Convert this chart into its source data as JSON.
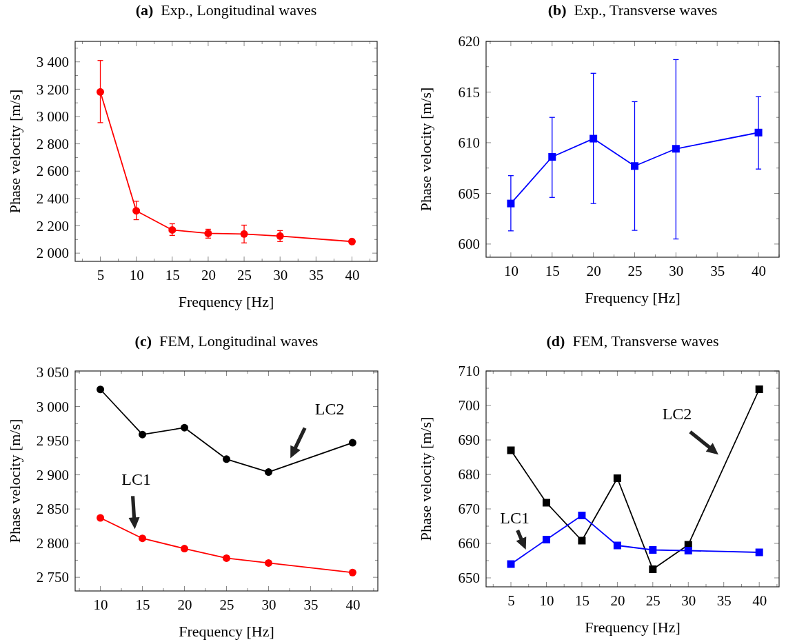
{
  "chart_data": [
    {
      "type": "line",
      "title": "(a) Exp., Longitudinal waves",
      "xlabel": "Frequency [Hz]",
      "ylabel": "Phase velocity [m/s]",
      "marker": "circle",
      "x": [
        5,
        10,
        15,
        20,
        25,
        30,
        40
      ],
      "xlim": [
        1.5,
        43.5
      ],
      "xticks": [
        {
          "value": 2.5,
          "label": null
        },
        5,
        {
          "value": 7.5,
          "label": null
        },
        10,
        {
          "value": 12.5,
          "label": null
        },
        15,
        {
          "value": 17.5,
          "label": null
        },
        20,
        {
          "value": 22.5,
          "label": null
        },
        25,
        {
          "value": 27.5,
          "label": null
        },
        30,
        {
          "value": 32.5,
          "label": null
        },
        35,
        {
          "value": 37.5,
          "label": null
        },
        40,
        {
          "value": 42.5,
          "label": null
        }
      ],
      "ylim": [
        1940,
        3550
      ],
      "yticks": [
        {
          "value": 2000,
          "label": "2 000"
        },
        {
          "value": 2100,
          "label": null
        },
        {
          "value": 2200,
          "label": "2 200"
        },
        {
          "value": 2300,
          "label": null
        },
        {
          "value": 2400,
          "label": "2 400"
        },
        {
          "value": 2500,
          "label": null
        },
        {
          "value": 2600,
          "label": "2 600"
        },
        {
          "value": 2700,
          "label": null
        },
        {
          "value": 2800,
          "label": "2 800"
        },
        {
          "value": 2900,
          "label": null
        },
        {
          "value": 3000,
          "label": "3 000"
        },
        {
          "value": 3100,
          "label": null
        },
        {
          "value": 3200,
          "label": "3 200"
        },
        {
          "value": 3300,
          "label": null
        },
        {
          "value": 3400,
          "label": "3 400"
        },
        {
          "value": 3500,
          "label": null
        }
      ],
      "series": [
        {
          "color": "#ff0000",
          "values": [
            3180,
            2310,
            2170,
            2145,
            2140,
            2125,
            2085
          ],
          "errors": [
            [
              2955,
              3410
            ],
            [
              2245,
              2380
            ],
            [
              2130,
              2215
            ],
            [
              2110,
              2175
            ],
            [
              2075,
              2205
            ],
            [
              2085,
              2165
            ],
            null
          ]
        }
      ]
    },
    {
      "type": "line",
      "title": "(b) Exp., Transverse waves",
      "xlabel": "Frequency [Hz]",
      "ylabel": "Phase velocity [m/s]",
      "marker": "square",
      "x": [
        10,
        15,
        20,
        25,
        30,
        40
      ],
      "xlim": [
        7,
        42.5
      ],
      "xticks": [
        {
          "value": 7.5,
          "label": null
        },
        10,
        {
          "value": 12.5,
          "label": null
        },
        15,
        {
          "value": 17.5,
          "label": null
        },
        20,
        {
          "value": 22.5,
          "label": null
        },
        25,
        {
          "value": 27.5,
          "label": null
        },
        30,
        {
          "value": 32.5,
          "label": null
        },
        35,
        {
          "value": 37.5,
          "label": null
        },
        40,
        {
          "value": 42.5,
          "label": null
        }
      ],
      "ylim": [
        598.7,
        620
      ],
      "yticks": [
        600,
        {
          "value": 602.5,
          "label": null
        },
        605,
        {
          "value": 607.5,
          "label": null
        },
        610,
        {
          "value": 612.5,
          "label": null
        },
        615,
        {
          "value": 617.5,
          "label": null
        },
        620
      ],
      "series": [
        {
          "color": "#0000ff",
          "values": [
            604.0,
            608.6,
            610.4,
            607.7,
            609.4,
            611.0
          ],
          "errors": [
            [
              601.3,
              606.75
            ],
            [
              604.6,
              612.5
            ],
            [
              604.0,
              616.85
            ],
            [
              601.35,
              614.05
            ],
            [
              600.5,
              618.2
            ],
            [
              607.4,
              614.55
            ]
          ]
        }
      ]
    },
    {
      "type": "line",
      "title": "(c) FEM, Longitudinal waves",
      "xlabel": "Frequency [Hz]",
      "ylabel": "Phase velocity [m/s]",
      "marker": "circle",
      "x": [
        10,
        15,
        20,
        25,
        30,
        40
      ],
      "xlim": [
        7,
        43
      ],
      "xticks": [
        {
          "value": 7.5,
          "label": null
        },
        10,
        {
          "value": 12.5,
          "label": null
        },
        15,
        {
          "value": 17.5,
          "label": null
        },
        20,
        {
          "value": 22.5,
          "label": null
        },
        25,
        {
          "value": 27.5,
          "label": null
        },
        30,
        {
          "value": 32.5,
          "label": null
        },
        35,
        {
          "value": 37.5,
          "label": null
        },
        40,
        {
          "value": 42.5,
          "label": null
        }
      ],
      "ylim": [
        2730,
        3052
      ],
      "yticks": [
        {
          "value": 2750,
          "label": "2 750"
        },
        {
          "value": 2775,
          "label": null
        },
        {
          "value": 2800,
          "label": "2 800"
        },
        {
          "value": 2825,
          "label": null
        },
        {
          "value": 2850,
          "label": "2 850"
        },
        {
          "value": 2875,
          "label": null
        },
        {
          "value": 2900,
          "label": "2 900"
        },
        {
          "value": 2925,
          "label": null
        },
        {
          "value": 2950,
          "label": "2 950"
        },
        {
          "value": 2975,
          "label": null
        },
        {
          "value": 3000,
          "label": "3 000"
        },
        {
          "value": 3025,
          "label": null
        },
        {
          "value": 3050,
          "label": "3 050"
        }
      ],
      "series": [
        {
          "name": "LC2",
          "color": "#000000",
          "values": [
            3025,
            2959,
            2969,
            2923,
            2904,
            2947
          ]
        },
        {
          "name": "LC1",
          "color": "#ff0000",
          "values": [
            2837,
            2807,
            2792,
            2778,
            2771,
            2757
          ]
        }
      ]
    },
    {
      "type": "line",
      "title": "(d) FEM, Transverse waves",
      "xlabel": "Frequency [Hz]",
      "ylabel": "Phase velocity [m/s]",
      "marker": "square",
      "x": [
        5,
        10,
        15,
        20,
        25,
        30,
        40
      ],
      "xlim": [
        1.5,
        42.8
      ],
      "xticks": [
        {
          "value": 2.5,
          "label": null
        },
        5,
        {
          "value": 7.5,
          "label": null
        },
        10,
        {
          "value": 12.5,
          "label": null
        },
        15,
        {
          "value": 17.5,
          "label": null
        },
        20,
        {
          "value": 22.5,
          "label": null
        },
        25,
        {
          "value": 27.5,
          "label": null
        },
        30,
        {
          "value": 32.5,
          "label": null
        },
        35,
        {
          "value": 37.5,
          "label": null
        },
        40,
        {
          "value": 42.5,
          "label": null
        }
      ],
      "ylim": [
        647.4,
        710
      ],
      "yticks": [
        650,
        {
          "value": 655,
          "label": null
        },
        660,
        {
          "value": 665,
          "label": null
        },
        670,
        {
          "value": 675,
          "label": null
        },
        680,
        {
          "value": 685,
          "label": null
        },
        690,
        {
          "value": 695,
          "label": null
        },
        700,
        {
          "value": 705,
          "label": null
        },
        710
      ],
      "series": [
        {
          "name": "LC2",
          "color": "#000000",
          "values": [
            687.0,
            671.8,
            660.8,
            678.9,
            652.5,
            659.6,
            704.7
          ]
        },
        {
          "name": "LC1",
          "color": "#0000ff",
          "values": [
            654.0,
            661.1,
            668.1,
            659.4,
            658.1,
            657.9,
            657.4
          ]
        }
      ]
    }
  ]
}
